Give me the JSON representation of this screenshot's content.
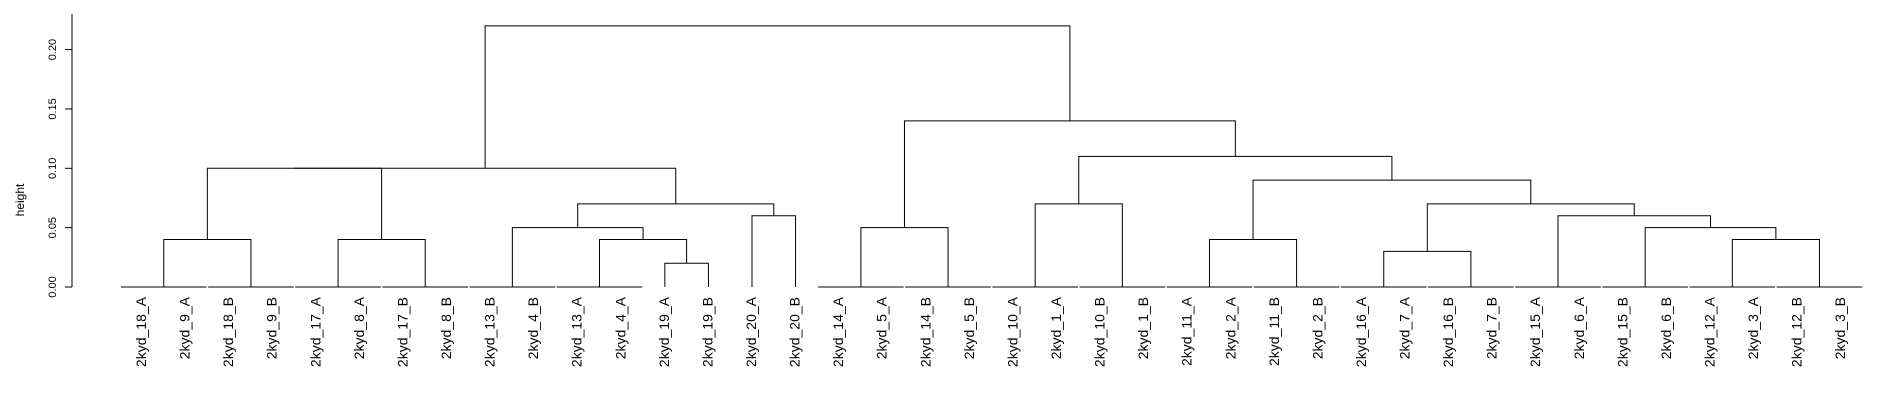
{
  "chart_data": {
    "type": "dendrogram",
    "ylabel": "height",
    "ylim": [
      0,
      0.23
    ],
    "yticks": [
      0.0,
      0.05,
      0.1,
      0.15,
      0.2
    ],
    "ytick_labels": [
      "0.00",
      "0.05",
      "0.10",
      "0.15",
      "0.20"
    ],
    "grid": false,
    "leaves": [
      "2kyd_18_A",
      "2kyd_9_A",
      "2kyd_18_B",
      "2kyd_9_B",
      "2kyd_17_A",
      "2kyd_8_A",
      "2kyd_17_B",
      "2kyd_8_B",
      "2kyd_13_B",
      "2kyd_4_B",
      "2kyd_13_A",
      "2kyd_4_A",
      "2kyd_19_A",
      "2kyd_19_B",
      "2kyd_20_A",
      "2kyd_20_B",
      "2kyd_14_A",
      "2kyd_5_A",
      "2kyd_14_B",
      "2kyd_5_B",
      "2kyd_10_A",
      "2kyd_1_A",
      "2kyd_10_B",
      "2kyd_1_B",
      "2kyd_11_A",
      "2kyd_2_A",
      "2kyd_11_B",
      "2kyd_2_B",
      "2kyd_16_A",
      "2kyd_7_A",
      "2kyd_16_B",
      "2kyd_7_B",
      "2kyd_15_A",
      "2kyd_6_A",
      "2kyd_15_B",
      "2kyd_6_B",
      "2kyd_12_A",
      "2kyd_3_A",
      "2kyd_12_B",
      "2kyd_3_B"
    ],
    "merges": [
      {
        "id": "m1",
        "children": [
          "L0",
          "L1"
        ],
        "height": 0.0
      },
      {
        "id": "m2",
        "children": [
          "L2",
          "L3"
        ],
        "height": 0.0
      },
      {
        "id": "m3",
        "children": [
          "m1",
          "m2"
        ],
        "height": 0.04
      },
      {
        "id": "m4",
        "children": [
          "L4",
          "L5"
        ],
        "height": 0.0
      },
      {
        "id": "m5",
        "children": [
          "L6",
          "L7"
        ],
        "height": 0.0
      },
      {
        "id": "m6",
        "children": [
          "m4",
          "m5"
        ],
        "height": 0.04
      },
      {
        "id": "m7",
        "children": [
          "m3",
          "m6"
        ],
        "height": 0.1
      },
      {
        "id": "m8",
        "children": [
          "L8",
          "L9"
        ],
        "height": 0.0
      },
      {
        "id": "m9",
        "children": [
          "L10",
          "L11"
        ],
        "height": 0.0
      },
      {
        "id": "m10",
        "children": [
          "L12",
          "L13"
        ],
        "height": 0.02
      },
      {
        "id": "m11",
        "children": [
          "m9",
          "m10"
        ],
        "height": 0.04
      },
      {
        "id": "m12",
        "children": [
          "m8",
          "m11"
        ],
        "height": 0.05
      },
      {
        "id": "m13",
        "children": [
          "L14",
          "L15"
        ],
        "height": 0.06
      },
      {
        "id": "m14",
        "children": [
          "m12",
          "m13"
        ],
        "height": 0.07
      },
      {
        "id": "m15",
        "children": [
          "m7",
          "m14"
        ],
        "height": 0.1
      },
      {
        "id": "m16",
        "children": [
          "L16",
          "L17"
        ],
        "height": 0.0
      },
      {
        "id": "m17",
        "children": [
          "L18",
          "L19"
        ],
        "height": 0.0
      },
      {
        "id": "m18",
        "children": [
          "m16",
          "m17"
        ],
        "height": 0.05
      },
      {
        "id": "m19",
        "children": [
          "L20",
          "L21"
        ],
        "height": 0.0
      },
      {
        "id": "m20",
        "children": [
          "L22",
          "L23"
        ],
        "height": 0.0
      },
      {
        "id": "m21",
        "children": [
          "m19",
          "m20"
        ],
        "height": 0.07
      },
      {
        "id": "m22",
        "children": [
          "L24",
          "L25"
        ],
        "height": 0.0
      },
      {
        "id": "m23",
        "children": [
          "L26",
          "L27"
        ],
        "height": 0.0
      },
      {
        "id": "m24",
        "children": [
          "m22",
          "m23"
        ],
        "height": 0.04
      },
      {
        "id": "m25",
        "children": [
          "L28",
          "L29"
        ],
        "height": 0.0
      },
      {
        "id": "m26",
        "children": [
          "L30",
          "L31"
        ],
        "height": 0.0
      },
      {
        "id": "m27",
        "children": [
          "m25",
          "m26"
        ],
        "height": 0.03
      },
      {
        "id": "m28",
        "children": [
          "L32",
          "L33"
        ],
        "height": 0.0
      },
      {
        "id": "m29",
        "children": [
          "L34",
          "L35"
        ],
        "height": 0.0
      },
      {
        "id": "m30",
        "children": [
          "L36",
          "L37"
        ],
        "height": 0.0
      },
      {
        "id": "m31",
        "children": [
          "L38",
          "L39"
        ],
        "height": 0.0
      },
      {
        "id": "m32",
        "children": [
          "m30",
          "m31"
        ],
        "height": 0.04
      },
      {
        "id": "m33",
        "children": [
          "m29",
          "m32"
        ],
        "height": 0.05
      },
      {
        "id": "m34",
        "children": [
          "m28",
          "m33"
        ],
        "height": 0.06
      },
      {
        "id": "m35",
        "children": [
          "m27",
          "m34"
        ],
        "height": 0.07
      },
      {
        "id": "m36",
        "children": [
          "m24",
          "m35"
        ],
        "height": 0.09
      },
      {
        "id": "m37",
        "children": [
          "m21",
          "m36"
        ],
        "height": 0.11
      },
      {
        "id": "m38",
        "children": [
          "m18",
          "m37"
        ],
        "height": 0.14
      },
      {
        "id": "m39",
        "children": [
          "m15",
          "m38"
        ],
        "height": 0.22
      }
    ]
  }
}
